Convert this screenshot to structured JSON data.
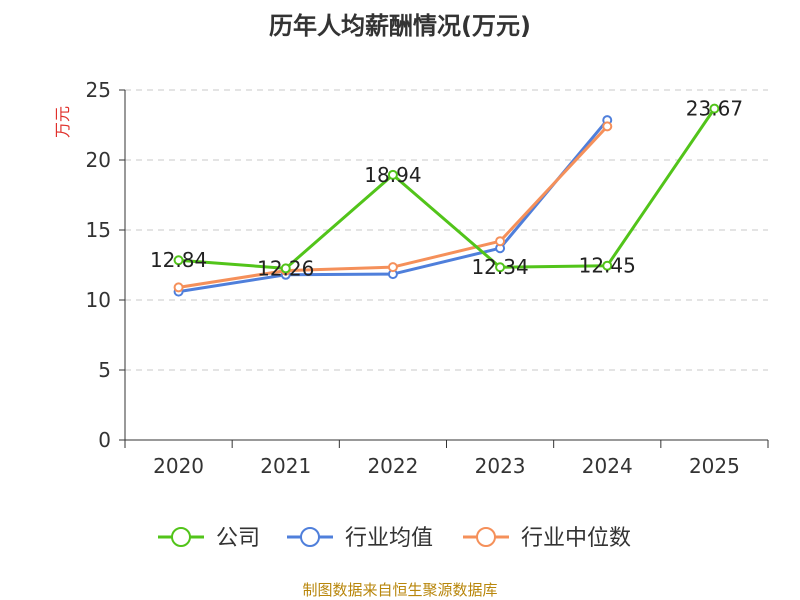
{
  "chart_data": {
    "type": "line",
    "title": "历年人均薪酬情况(万元)",
    "ylabel": "万元",
    "xlabel": "",
    "ylim": [
      0,
      25
    ],
    "yticks": [
      0,
      5,
      10,
      15,
      20,
      25
    ],
    "categories": [
      "2020",
      "2021",
      "2022",
      "2023",
      "2024",
      "2025"
    ],
    "grid": true,
    "legend_position": "bottom",
    "series": [
      {
        "name": "公司",
        "color": "#52c41a",
        "values": [
          12.84,
          12.26,
          18.94,
          12.34,
          12.45,
          23.67
        ],
        "labels": [
          "12.84",
          "12.26",
          "18.94",
          "12.34",
          "12.45",
          "23.67"
        ]
      },
      {
        "name": "行业均值",
        "color": "#4f7fdb",
        "values": [
          10.6,
          11.8,
          11.85,
          13.7,
          22.85,
          null
        ]
      },
      {
        "name": "行业中位数",
        "color": "#f5905a",
        "values": [
          10.9,
          12.1,
          12.35,
          14.2,
          22.4,
          null
        ]
      }
    ],
    "source": "制图数据来自恒生聚源数据库"
  }
}
